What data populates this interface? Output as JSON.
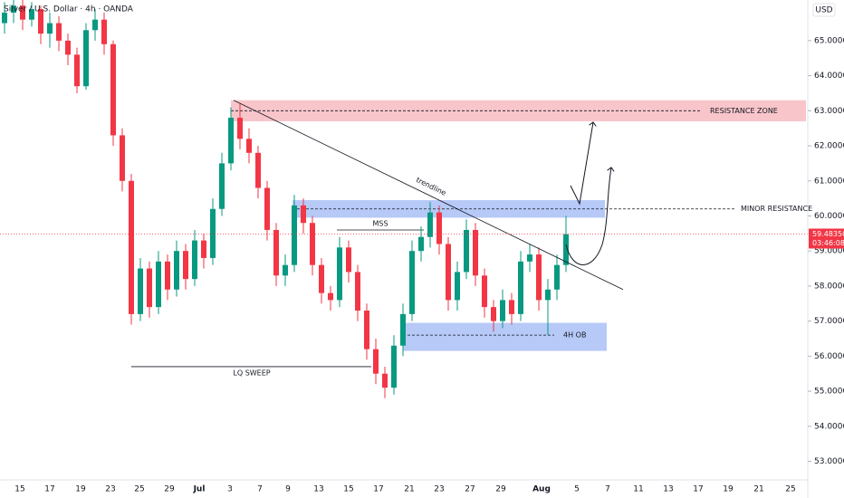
{
  "chart_data": {
    "type": "candlestick",
    "title": "Silver / U.S. Dollar · 4h · OANDA",
    "currency": "USD",
    "colors": {
      "up": "#089981",
      "down": "#f23645"
    },
    "ylim": [
      52.47,
      66.16
    ],
    "yticks": [
      {
        "value": 53,
        "label": "53.00000"
      },
      {
        "value": 54,
        "label": "54.00000"
      },
      {
        "value": 55,
        "label": "55.00000"
      },
      {
        "value": 56,
        "label": "56.00000"
      },
      {
        "value": 57,
        "label": "57.00000"
      },
      {
        "value": 58,
        "label": "58.00000"
      },
      {
        "value": 59,
        "label": "59.00000"
      },
      {
        "value": 60,
        "label": "60.00000"
      },
      {
        "value": 61,
        "label": "61.00000"
      },
      {
        "value": 62,
        "label": "62.00000"
      },
      {
        "value": 63,
        "label": "63.00000"
      },
      {
        "value": 64,
        "label": "64.00000"
      },
      {
        "value": 65,
        "label": "65.00000"
      }
    ],
    "xticks": [
      "15",
      "17",
      "19",
      "23",
      "25",
      "29",
      "Jul",
      "3",
      "7",
      "9",
      "13",
      "15",
      "17",
      "21",
      "23",
      "27",
      "29",
      "Aug",
      "5",
      "7",
      "11",
      "13",
      "17",
      "19",
      "21",
      "25"
    ],
    "candles": [
      [
        65.5,
        66.1,
        65.2,
        65.8
      ],
      [
        65.8,
        66.3,
        65.5,
        66.0
      ],
      [
        66.0,
        66.2,
        65.3,
        65.6
      ],
      [
        65.6,
        66.1,
        65.4,
        65.9
      ],
      [
        65.9,
        66.0,
        64.9,
        65.2
      ],
      [
        65.2,
        65.8,
        64.8,
        65.5
      ],
      [
        65.5,
        65.7,
        64.7,
        65.0
      ],
      [
        65.0,
        65.2,
        64.3,
        64.6
      ],
      [
        64.6,
        64.8,
        63.5,
        63.7
      ],
      [
        63.7,
        65.5,
        63.6,
        65.3
      ],
      [
        65.3,
        65.9,
        65.0,
        65.6
      ],
      [
        65.6,
        65.8,
        64.6,
        64.9
      ],
      [
        64.9,
        65.0,
        62.0,
        62.3
      ],
      [
        62.3,
        62.5,
        60.7,
        61.0
      ],
      [
        61.0,
        61.2,
        56.9,
        57.2
      ],
      [
        57.2,
        58.8,
        57.0,
        58.5
      ],
      [
        58.5,
        58.7,
        57.1,
        57.4
      ],
      [
        57.4,
        59.0,
        57.2,
        58.7
      ],
      [
        58.7,
        58.9,
        57.6,
        57.9
      ],
      [
        57.9,
        59.3,
        57.7,
        59.0
      ],
      [
        59.0,
        59.2,
        57.9,
        58.2
      ],
      [
        58.2,
        59.6,
        58.0,
        59.3
      ],
      [
        59.3,
        59.5,
        58.5,
        58.8
      ],
      [
        58.8,
        60.5,
        58.6,
        60.2
      ],
      [
        60.2,
        61.8,
        60.0,
        61.5
      ],
      [
        61.5,
        63.1,
        61.3,
        62.8
      ],
      [
        62.8,
        63.2,
        61.9,
        62.2
      ],
      [
        62.2,
        62.5,
        61.5,
        61.8
      ],
      [
        61.8,
        62.0,
        60.5,
        60.8
      ],
      [
        60.8,
        61.0,
        59.3,
        59.6
      ],
      [
        59.6,
        59.8,
        58.0,
        58.3
      ],
      [
        58.3,
        58.9,
        58.0,
        58.6
      ],
      [
        58.6,
        60.6,
        58.4,
        60.3
      ],
      [
        60.3,
        60.5,
        59.5,
        59.8
      ],
      [
        59.8,
        60.0,
        58.3,
        58.6
      ],
      [
        58.6,
        58.8,
        57.5,
        57.8
      ],
      [
        57.8,
        58.0,
        57.3,
        57.6
      ],
      [
        57.6,
        59.4,
        57.4,
        59.1
      ],
      [
        59.1,
        59.3,
        58.1,
        58.4
      ],
      [
        58.4,
        58.6,
        57.0,
        57.3
      ],
      [
        57.3,
        57.5,
        55.9,
        56.2
      ],
      [
        56.2,
        56.5,
        55.2,
        55.5
      ],
      [
        55.5,
        55.7,
        54.8,
        55.1
      ],
      [
        55.1,
        56.6,
        54.9,
        56.3
      ],
      [
        56.3,
        57.5,
        56.0,
        57.2
      ],
      [
        57.2,
        59.3,
        57.0,
        59.0
      ],
      [
        59.0,
        59.7,
        58.7,
        59.4
      ],
      [
        59.4,
        60.4,
        59.1,
        60.1
      ],
      [
        60.1,
        60.3,
        58.9,
        59.2
      ],
      [
        59.2,
        59.4,
        57.3,
        57.6
      ],
      [
        57.6,
        58.7,
        57.3,
        58.4
      ],
      [
        58.4,
        59.9,
        58.2,
        59.6
      ],
      [
        59.6,
        59.8,
        58.0,
        58.3
      ],
      [
        58.3,
        58.5,
        57.1,
        57.4
      ],
      [
        57.4,
        57.6,
        56.7,
        57.0
      ],
      [
        57.0,
        57.9,
        56.8,
        57.6
      ],
      [
        57.6,
        57.8,
        56.9,
        57.2
      ],
      [
        57.2,
        59.0,
        57.0,
        58.7
      ],
      [
        58.7,
        59.2,
        58.4,
        58.9
      ],
      [
        58.9,
        59.1,
        57.3,
        57.6
      ],
      [
        57.6,
        58.2,
        56.6,
        57.9
      ],
      [
        57.9,
        58.9,
        57.6,
        58.6
      ],
      [
        58.6,
        60.0,
        58.4,
        59.48
      ]
    ],
    "last_price": {
      "value": 59.4835,
      "label": "59.48350"
    },
    "countdown": "03:46:08",
    "zones": [
      {
        "label": "RESISTANCE ZONE",
        "top": 63.3,
        "bottom": 62.7,
        "line": 63.0,
        "color": "#f8c5ca"
      },
      {
        "label": "MINOR RESISTANCE",
        "top": 60.45,
        "bottom": 59.95,
        "line": 60.2,
        "color": "#b6c9f7"
      },
      {
        "label": "4H OB",
        "top": 56.95,
        "bottom": 56.15,
        "line": 56.6,
        "color": "#b6c9f7"
      }
    ],
    "trendline": {
      "label": "trendline",
      "start": 63.3,
      "end": 57.9
    },
    "levels": [
      {
        "label": "MSS",
        "value": 59.6
      },
      {
        "label": "LQ SWEEP",
        "value": 55.7
      }
    ]
  }
}
